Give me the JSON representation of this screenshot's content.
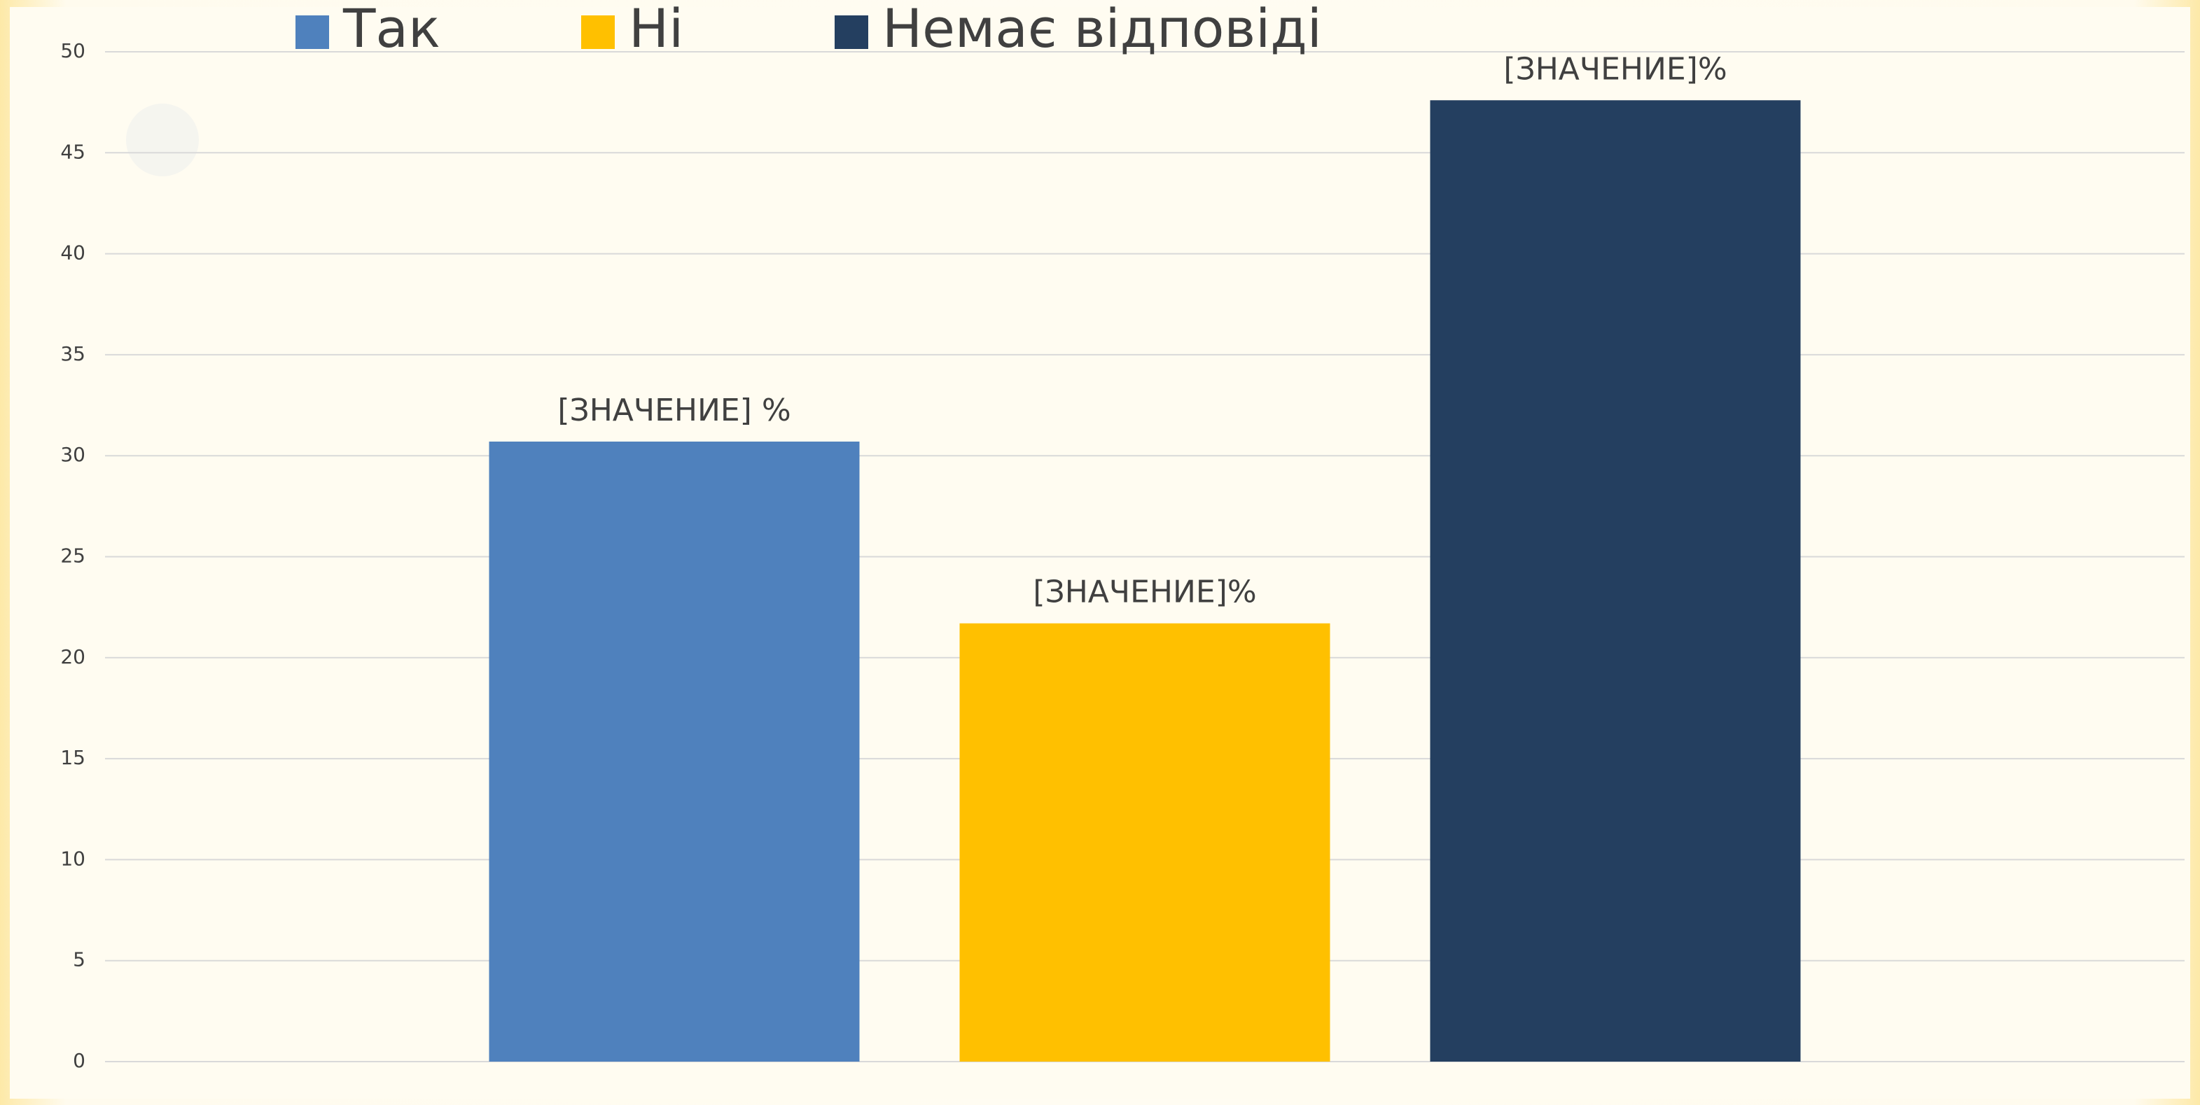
{
  "chart_data": {
    "type": "bar",
    "categories": [
      null
    ],
    "series": [
      {
        "name": "Так",
        "color": "#4f81bd",
        "values": [
          30.7
        ],
        "value_labels": [
          "[ЗНАЧЕНИЕ] %"
        ]
      },
      {
        "name": "Ні",
        "color": "#ffc000",
        "values": [
          21.7
        ],
        "value_labels": [
          "[ЗНАЧЕНИЕ]%"
        ]
      },
      {
        "name": "Немає відповіді",
        "color": "#243f60",
        "values": [
          47.6
        ],
        "value_labels": [
          "[ЗНАЧЕНИЕ]%"
        ]
      }
    ],
    "ylim": [
      0,
      50
    ],
    "yticks": [
      0,
      5,
      10,
      15,
      20,
      25,
      30,
      35,
      40,
      45,
      50
    ],
    "grid": true,
    "legend": "top"
  }
}
